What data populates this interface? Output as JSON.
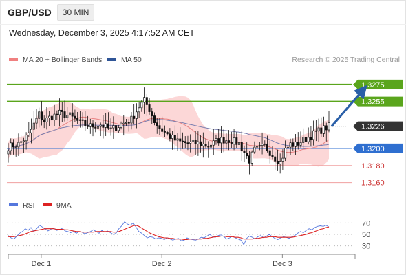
{
  "header": {
    "symbol": "GBP/USD",
    "timeframe": "30 MIN",
    "datetime": "Wednesday, December 3, 2025 4:17:52 AM CET"
  },
  "legend": {
    "items": [
      {
        "label": "MA 20 + Bollinger Bands",
        "color": "#f08080"
      },
      {
        "label": "MA 50",
        "color": "#2f5597"
      }
    ],
    "credit": "Research © 2025 Trading Central"
  },
  "colors": {
    "up_candle": "#ffffff",
    "down_candle": "#111111",
    "bollinger_fill": "#fbd0d0",
    "ma20": "#e88080",
    "ma50": "#7a7fb0",
    "resistance": "#5aa51c",
    "support": "#2f6fd0",
    "support_minor": "#f0a0a0",
    "arrow": "#2a5fa8",
    "rsi": "#5577dd",
    "rsi_ma": "#dd2222"
  },
  "chart_data": [
    {
      "type": "candlestick",
      "y_range": [
        1.315,
        1.3295
      ],
      "levels": [
        {
          "value": 1.3275,
          "label": "1.3275",
          "kind": "resistance"
        },
        {
          "value": 1.3255,
          "label": "1.3255",
          "kind": "resistance"
        },
        {
          "value": 1.3226,
          "label": "1.3226",
          "kind": "last_price"
        },
        {
          "value": 1.32,
          "label": "1.3200",
          "kind": "pivot"
        },
        {
          "value": 1.318,
          "label": "1.3180",
          "kind": "support"
        },
        {
          "value": 1.316,
          "label": "1.3160",
          "kind": "support"
        }
      ],
      "x_labels": [
        {
          "label": "Dec 1",
          "index": 15
        },
        {
          "label": "Dec 2",
          "index": 62
        },
        {
          "label": "Dec 3",
          "index": 109
        }
      ],
      "candle_count": 126,
      "close_path": [
        [
          0,
          1.3202
        ],
        [
          4,
          1.3205
        ],
        [
          8,
          1.3216
        ],
        [
          10,
          1.3228
        ],
        [
          12,
          1.324
        ],
        [
          14,
          1.3232
        ],
        [
          16,
          1.3236
        ],
        [
          20,
          1.3241
        ],
        [
          24,
          1.3238
        ],
        [
          28,
          1.323
        ],
        [
          32,
          1.3226
        ],
        [
          36,
          1.3228
        ],
        [
          40,
          1.3222
        ],
        [
          44,
          1.3228
        ],
        [
          48,
          1.3234
        ],
        [
          51,
          1.3249
        ],
        [
          53,
          1.3256
        ],
        [
          55,
          1.3246
        ],
        [
          57,
          1.3232
        ],
        [
          59,
          1.3224
        ],
        [
          62,
          1.3216
        ],
        [
          66,
          1.3208
        ],
        [
          70,
          1.3206
        ],
        [
          74,
          1.3206
        ],
        [
          78,
          1.3203
        ],
        [
          82,
          1.321
        ],
        [
          86,
          1.321
        ],
        [
          88,
          1.3208
        ],
        [
          90,
          1.3206
        ],
        [
          92,
          1.3195
        ],
        [
          94,
          1.3186
        ],
        [
          96,
          1.3198
        ],
        [
          98,
          1.32
        ],
        [
          100,
          1.3203
        ],
        [
          102,
          1.3196
        ],
        [
          104,
          1.3189
        ],
        [
          106,
          1.3184
        ],
        [
          108,
          1.3198
        ],
        [
          110,
          1.3205
        ],
        [
          112,
          1.3204
        ],
        [
          114,
          1.3208
        ],
        [
          117,
          1.3213
        ],
        [
          120,
          1.3219
        ],
        [
          123,
          1.3223
        ],
        [
          125,
          1.3226
        ]
      ],
      "projection": {
        "from_index": 125,
        "from_value": 1.3226,
        "to_index": 134,
        "to_value": 1.3275
      }
    },
    {
      "type": "line",
      "title": "RSI",
      "y_range": [
        20,
        80
      ],
      "ticks": [
        70,
        50,
        30
      ],
      "series": [
        {
          "name": "RSI",
          "values": [
            48,
            44,
            42,
            47,
            52,
            55,
            60,
            57,
            62,
            55,
            60,
            66,
            63,
            60,
            56,
            59,
            61,
            57,
            58,
            61,
            56,
            55,
            53,
            55,
            52,
            55,
            54,
            51,
            53,
            55,
            58,
            55,
            52,
            57,
            54,
            56,
            53,
            50,
            52,
            60,
            65,
            72,
            68,
            66,
            70,
            63,
            55,
            52,
            48,
            44,
            46,
            45,
            42,
            44,
            43,
            41,
            44,
            42,
            40,
            42,
            43,
            39,
            40,
            44,
            42,
            41,
            40,
            42,
            45,
            44,
            47,
            50,
            46,
            45,
            48,
            49,
            46,
            42,
            44,
            47,
            44,
            42,
            40,
            32,
            43,
            47,
            45,
            42,
            46,
            48,
            44,
            47,
            50,
            46,
            43,
            41,
            44,
            46,
            45,
            43,
            46,
            48,
            52,
            55,
            53,
            57,
            60,
            58,
            62,
            64,
            65,
            64,
            66,
            63
          ]
        },
        {
          "name": "9MA",
          "values": [
            46,
            46,
            46,
            47,
            48,
            49,
            51,
            53,
            55,
            56,
            57,
            58,
            59,
            60,
            60,
            60,
            60,
            59,
            59,
            59,
            58,
            58,
            57,
            56,
            55,
            55,
            54,
            54,
            54,
            54,
            54,
            55,
            55,
            55,
            55,
            55,
            55,
            54,
            54,
            55,
            57,
            59,
            61,
            63,
            65,
            66,
            64,
            61,
            58,
            55,
            52,
            50,
            48,
            46,
            45,
            44,
            44,
            43,
            43,
            42,
            42,
            42,
            41,
            41,
            42,
            42,
            42,
            42,
            42,
            43,
            43,
            44,
            45,
            46,
            46,
            47,
            47,
            46,
            46,
            46,
            45,
            45,
            44,
            42,
            42,
            42,
            42,
            43,
            43,
            44,
            45,
            45,
            46,
            46,
            46,
            45,
            45,
            45,
            45,
            45,
            45,
            46,
            47,
            48,
            49,
            50,
            52,
            53,
            55,
            57,
            59,
            60,
            62,
            63
          ]
        }
      ]
    }
  ]
}
